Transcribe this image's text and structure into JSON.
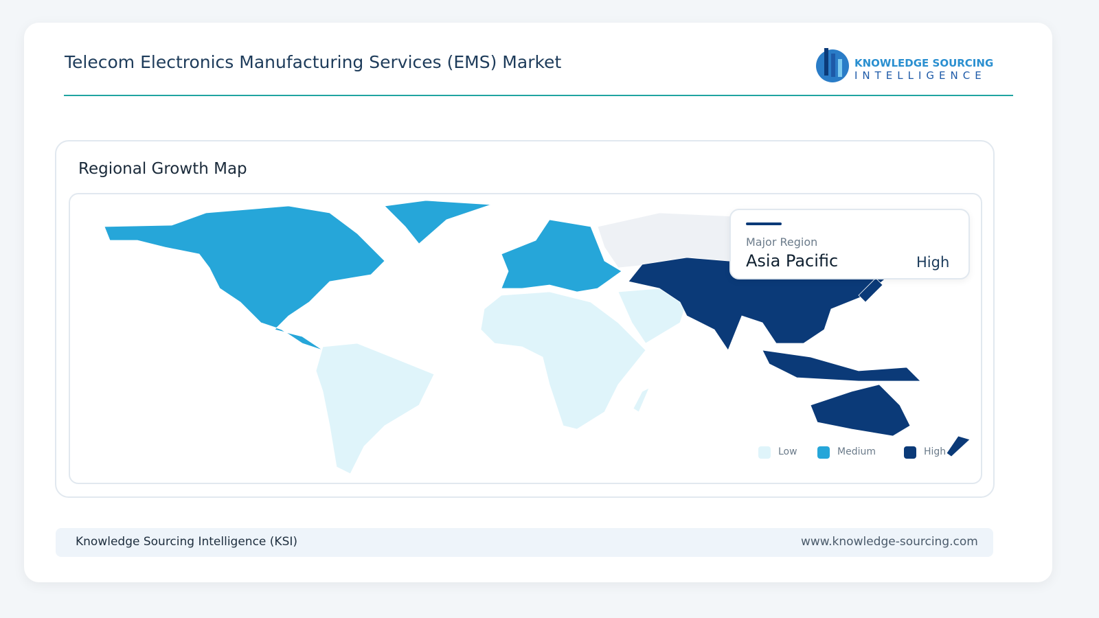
{
  "header": {
    "title": "Telecom Electronics Manufacturing Services (EMS) Market",
    "logo": {
      "line1": "KNOWLEDGE SOURCING",
      "line2": "INTELLIGENCE"
    }
  },
  "panel": {
    "title": "Regional Growth Map",
    "tooltip": {
      "label": "Major Region",
      "region": "Asia Pacific",
      "level": "High"
    },
    "legend": [
      {
        "label": "Low",
        "color": "#dff4fa"
      },
      {
        "label": "Medium",
        "color": "#26a6d9"
      },
      {
        "label": "High",
        "color": "#0b3a78"
      }
    ]
  },
  "footer": {
    "left": "Knowledge Sourcing Intelligence (KSI)",
    "right": "www.knowledge-sourcing.com"
  }
}
